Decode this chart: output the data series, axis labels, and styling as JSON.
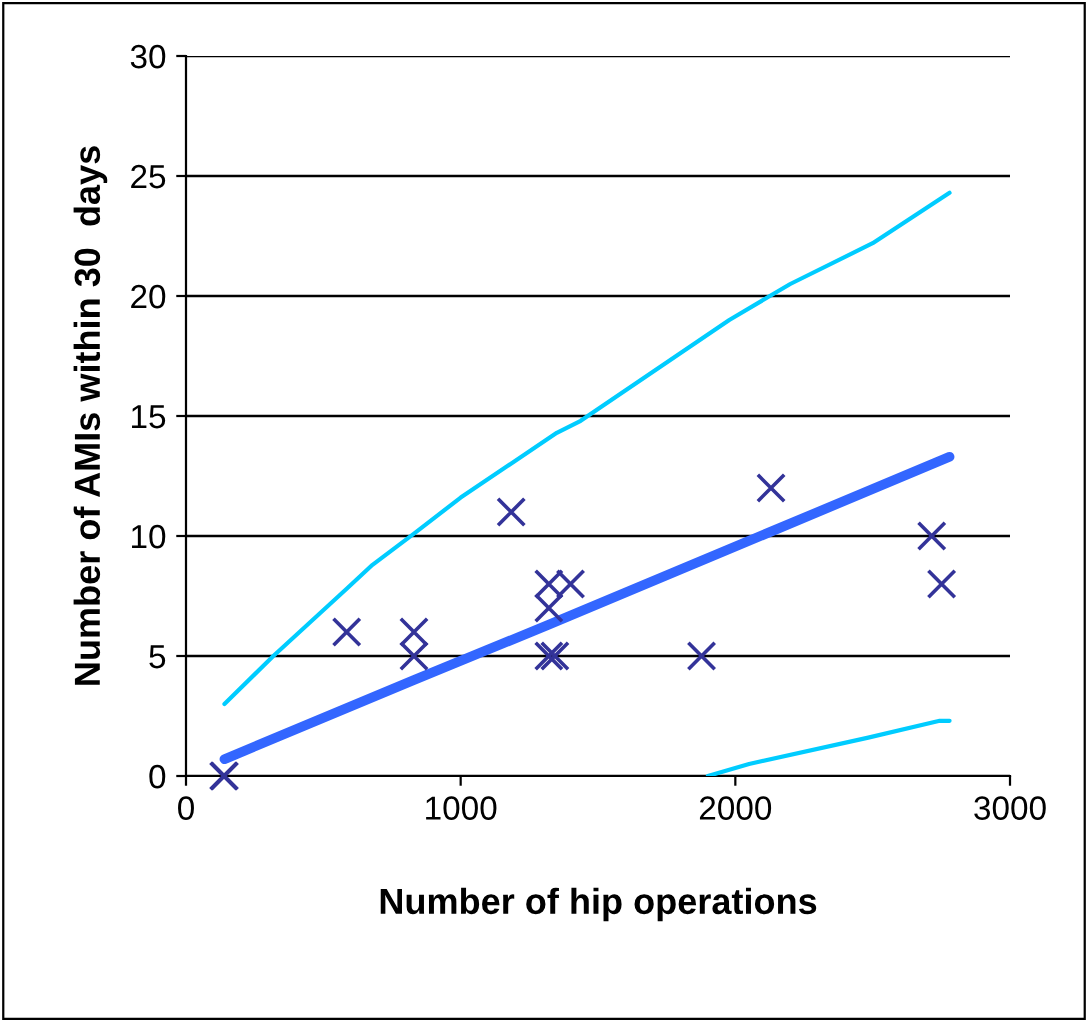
{
  "chart_data": {
    "type": "scatter",
    "xlabel": "Number of hip operations",
    "ylabel": "Number of AMIs within 30  days",
    "xlim": [
      0,
      3000
    ],
    "xticks": [
      0,
      1000,
      2000,
      3000
    ],
    "ylim": [
      0,
      30
    ],
    "yticks": [
      0,
      5,
      10,
      15,
      20,
      25,
      30
    ],
    "grid": "y",
    "series": [
      {
        "marker": "cross",
        "color": "#333399",
        "x": [
          137,
          140,
          585,
          830,
          830,
          1184,
          1321,
          1321,
          1321,
          1343,
          1400,
          1877,
          2130,
          2715,
          2751
        ],
        "values": [
          0,
          0,
          6,
          6,
          5,
          11,
          8,
          7,
          5,
          5,
          8,
          5,
          12,
          10,
          8
        ]
      },
      {
        "type": "line",
        "marker": "none",
        "color": "#00ccff",
        "x": [
          140,
          318,
          585,
          679,
          830,
          1000,
          1350,
          1437,
          1978,
          2200,
          2500,
          2780
        ],
        "values": [
          3.0,
          5,
          7.8,
          8.8,
          10.1,
          11.6,
          14.3,
          14.8,
          19,
          20.5,
          22.2,
          24.3
        ]
      },
      {
        "type": "line",
        "marker": "none",
        "color": "#3366ff",
        "x": [
          140,
          830,
          1320,
          2780
        ],
        "values": [
          0.7,
          4.0,
          6.3,
          13.3
        ]
      },
      {
        "type": "line",
        "marker": "none",
        "color": "#00ccff",
        "x": [
          1900,
          2050,
          2484,
          2744,
          2780
        ],
        "values": [
          0,
          0.5,
          1.6,
          2.3,
          2.3
        ]
      }
    ]
  }
}
